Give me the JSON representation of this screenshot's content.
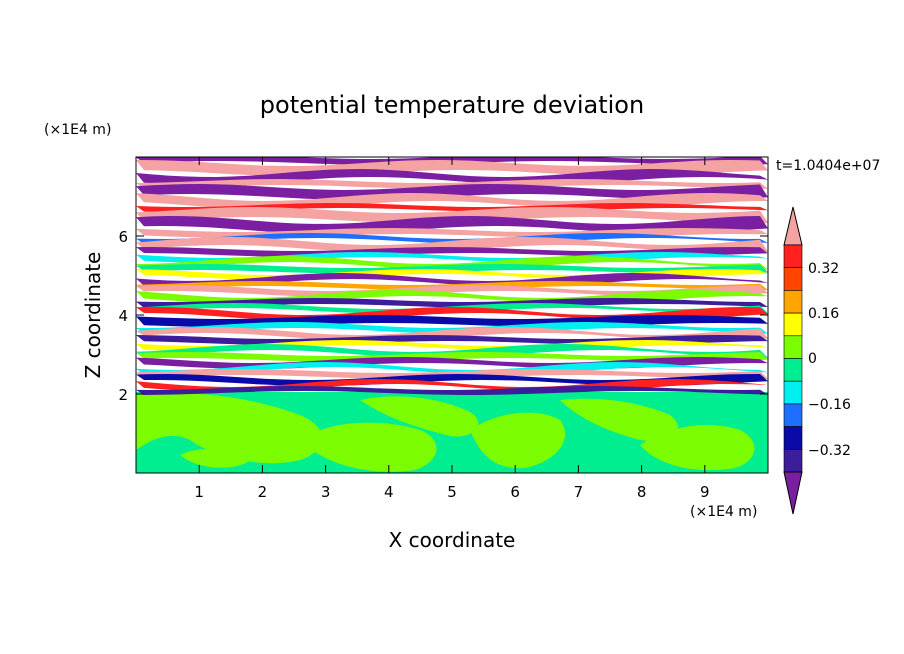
{
  "chart_data": {
    "type": "heatmap",
    "title": "potential temperature deviation",
    "xlabel": "X coordinate",
    "ylabel": "Z coordinate",
    "x_unit": "(×1E4 m)",
    "y_unit": "(×1E4 m)",
    "time_label": "t=1.0404e+07",
    "xlim": [
      0,
      10
    ],
    "ylim": [
      0,
      8
    ],
    "x_ticks": [
      1,
      2,
      3,
      4,
      5,
      6,
      7,
      8,
      9
    ],
    "y_ticks": [
      2,
      4,
      6
    ],
    "x_tick_labels": [
      "1",
      "2",
      "3",
      "4",
      "5",
      "6",
      "7",
      "8",
      "9"
    ],
    "y_tick_labels": [
      "2",
      "4",
      "6"
    ],
    "colorbar": {
      "levels": [
        -0.4,
        -0.32,
        -0.24,
        -0.16,
        -0.08,
        0,
        0.08,
        0.16,
        0.24,
        0.32,
        0.4
      ],
      "colors": [
        "#7a1fa2",
        "#3c1d9c",
        "#0a0aa8",
        "#1e6fff",
        "#00f0f0",
        "#00ee90",
        "#7cfc00",
        "#ffff00",
        "#ffa500",
        "#ff4500",
        "#ff2020",
        "#f4a2a2"
      ],
      "labeled_levels": [
        "0.32",
        "0.16",
        "0",
        "−0.16",
        "−0.32"
      ],
      "extend": "both"
    }
  }
}
